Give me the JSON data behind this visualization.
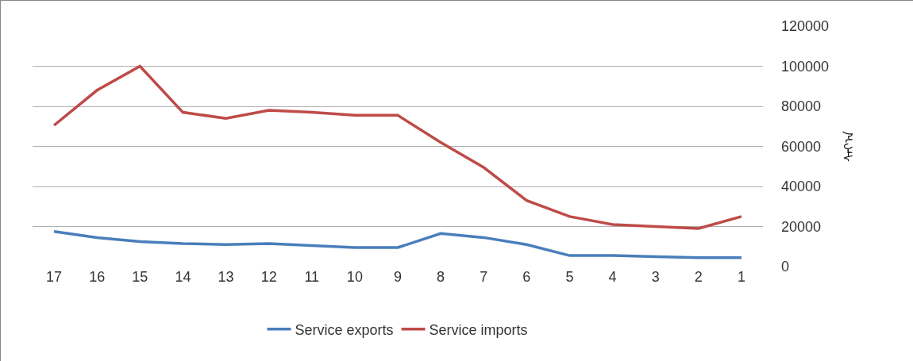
{
  "chart_data": {
    "type": "line",
    "ylabel": "ᠰᠠᠶ᠎ᠠ",
    "categories": [
      "17",
      "16",
      "15",
      "14",
      "13",
      "12",
      "11",
      "10",
      "9",
      "8",
      "7",
      "6",
      "5",
      "4",
      "3",
      "2",
      "1"
    ],
    "series": [
      {
        "name": "Service exports",
        "color": "#4a7ebb",
        "values": [
          17500,
          14500,
          12500,
          11500,
          11000,
          11500,
          10500,
          9500,
          9500,
          16500,
          14500,
          11000,
          5500,
          5500,
          5000,
          4500,
          4500
        ]
      },
      {
        "name": "Service imports",
        "color": "#be4b48",
        "values": [
          70500,
          88000,
          100000,
          77000,
          74000,
          78000,
          77000,
          75500,
          75500,
          62000,
          49500,
          33000,
          25000,
          21000,
          20000,
          19000,
          25000
        ]
      }
    ],
    "ylim": [
      0,
      120000
    ],
    "yticks": [
      0,
      20000,
      40000,
      60000,
      80000,
      100000,
      120000
    ],
    "grid": "y",
    "legend": "bottom",
    "marker": "none",
    "line_style": "solid"
  }
}
